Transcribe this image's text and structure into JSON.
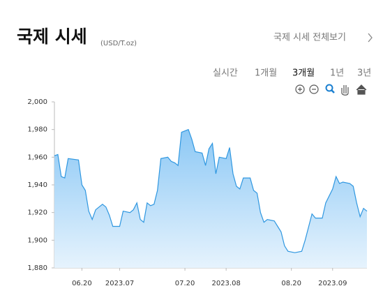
{
  "header": {
    "title": "국제 시세",
    "unit": "(USD/T.oz)",
    "link": "국제 시세 전체보기"
  },
  "tabs": [
    "실시간",
    "1개월",
    "3개월",
    "1년",
    "3년"
  ],
  "active_tab": 2,
  "chart_data": {
    "type": "area",
    "color": "#2f97e0",
    "x": [
      "2023-06-12",
      "2023-06-13",
      "2023-06-14",
      "2023-06-15",
      "2023-06-16",
      "2023-06-19",
      "2023-06-20",
      "2023-06-21",
      "2023-06-22",
      "2023-06-23",
      "2023-06-24",
      "2023-06-26",
      "2023-06-27",
      "2023-06-28",
      "2023-06-29",
      "2023-07-01",
      "2023-07-02",
      "2023-07-04",
      "2023-07-05",
      "2023-07-06",
      "2023-07-07",
      "2023-07-08",
      "2023-07-09",
      "2023-07-10",
      "2023-07-11",
      "2023-07-12",
      "2023-07-13",
      "2023-07-15",
      "2023-07-16",
      "2023-07-17",
      "2023-07-18",
      "2023-07-19",
      "2023-07-21",
      "2023-07-22",
      "2023-07-23",
      "2023-07-25",
      "2023-07-26",
      "2023-07-27",
      "2023-07-28",
      "2023-07-29",
      "2023-07-30",
      "2023-08-01",
      "2023-08-02",
      "2023-08-03",
      "2023-08-04",
      "2023-08-05",
      "2023-08-06",
      "2023-08-08",
      "2023-08-09",
      "2023-08-10",
      "2023-08-11",
      "2023-08-12",
      "2023-08-13",
      "2023-08-15",
      "2023-08-16",
      "2023-08-17",
      "2023-08-18",
      "2023-08-19",
      "2023-08-21",
      "2023-08-23",
      "2023-08-24",
      "2023-08-26",
      "2023-08-27",
      "2023-08-29",
      "2023-08-30",
      "2023-09-01",
      "2023-09-02",
      "2023-09-03",
      "2023-09-04",
      "2023-09-06",
      "2023-09-07",
      "2023-09-08",
      "2023-09-09",
      "2023-09-10",
      "2023-09-11"
    ],
    "values": [
      1961,
      1962,
      1946,
      1945,
      1959,
      1958,
      1940,
      1936,
      1921,
      1915,
      1922,
      1926,
      1924,
      1918,
      1910,
      1910,
      1921,
      1920,
      1922,
      1927,
      1915,
      1913,
      1927,
      1925,
      1926,
      1936,
      1959,
      1960,
      1957,
      1956,
      1954,
      1978,
      1980,
      1973,
      1964,
      1963,
      1954,
      1966,
      1970,
      1948,
      1960,
      1959,
      1967,
      1948,
      1939,
      1937,
      1945,
      1945,
      1936,
      1934,
      1920,
      1913,
      1915,
      1914,
      1910,
      1906,
      1896,
      1892,
      1891,
      1892,
      1900,
      1919,
      1916,
      1916,
      1927,
      1937,
      1946,
      1941,
      1942,
      1941,
      1939,
      1927,
      1917,
      1923,
      1921
    ],
    "xlim": [
      "2023-06-12",
      "2023-09-11"
    ],
    "xticks": [
      {
        "value": "2023-06-20",
        "label": "06.20"
      },
      {
        "value": "2023-07-01",
        "label": "2023.07"
      },
      {
        "value": "2023-07-20",
        "label": "07.20"
      },
      {
        "value": "2023-08-01",
        "label": "2023.08"
      },
      {
        "value": "2023-08-20",
        "label": "08.20"
      },
      {
        "value": "2023-09-01",
        "label": "2023.09"
      }
    ],
    "ylim": [
      1880,
      2000
    ],
    "yticks": [
      {
        "value": 1880,
        "label": "1,880"
      },
      {
        "value": 1900,
        "label": "1,900"
      },
      {
        "value": 1920,
        "label": "1,920"
      },
      {
        "value": 1940,
        "label": "1,940"
      },
      {
        "value": 1960,
        "label": "1,960"
      },
      {
        "value": 1980,
        "label": "1,980"
      },
      {
        "value": 2000,
        "label": "2,000"
      }
    ],
    "grid": false
  }
}
